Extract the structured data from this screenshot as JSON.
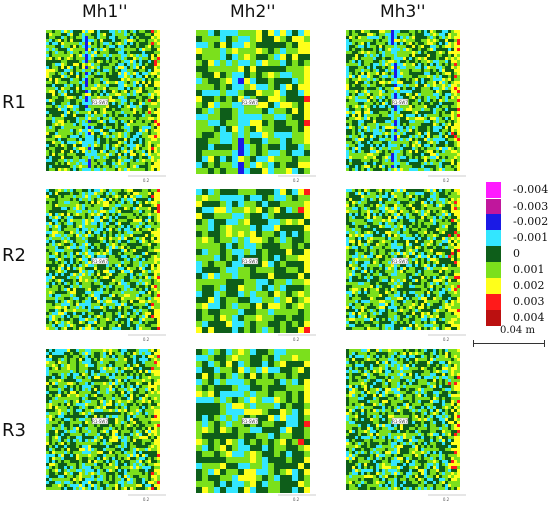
{
  "columns": [
    "Mh1''",
    "Mh2''",
    "Mh3''"
  ],
  "rows": [
    "R1",
    "R2",
    "R3"
  ],
  "panel_label": "R1-SW7",
  "panel_tick": "0.2",
  "legend": [
    {
      "label": "-0.004",
      "color": "#ff1aff"
    },
    {
      "label": "-0.003",
      "color": "#c0179c"
    },
    {
      "label": "-0.002",
      "color": "#1a1ae6"
    },
    {
      "label": "-0.001",
      "color": "#33e6ff"
    },
    {
      "label": "0",
      "color": "#0e5e1a"
    },
    {
      "label": "0.001",
      "color": "#7be01c"
    },
    {
      "label": "0.002",
      "color": "#ffff1a"
    },
    {
      "label": "0.003",
      "color": "#ff1a1a"
    },
    {
      "label": "0.004",
      "color": "#bb1010"
    }
  ],
  "scale": {
    "label": "0.04 m"
  }
}
